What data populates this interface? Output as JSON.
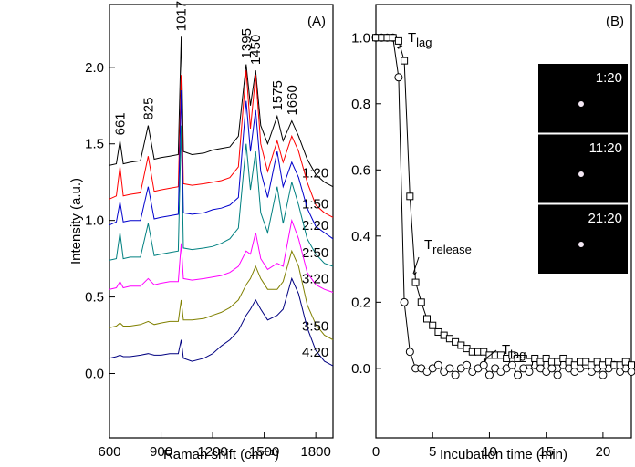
{
  "chart_data": [
    {
      "type": "line",
      "panel_label": "(A)",
      "xlabel": "Raman shift (cm⁻¹)",
      "ylabel": "Intensity (a.u.)",
      "xlim": [
        600,
        1900
      ],
      "xticks": [
        600,
        900,
        1200,
        1500,
        1800
      ],
      "ylim": [
        -0.42,
        2.41
      ],
      "yticks": [
        {
          "value": 0,
          "label": "0.0"
        },
        {
          "value": 0.5,
          "label": "0.5"
        },
        {
          "value": 1,
          "label": "1.0"
        },
        {
          "value": 1.5,
          "label": "1.5"
        },
        {
          "value": 2,
          "label": "2.0"
        }
      ],
      "peak_labels": [
        661,
        825,
        1017,
        1395,
        1450,
        1575,
        1660
      ],
      "x": [
        600,
        640,
        661,
        680,
        720,
        780,
        825,
        860,
        900,
        950,
        1000,
        1017,
        1030,
        1080,
        1150,
        1200,
        1250,
        1300,
        1350,
        1395,
        1420,
        1450,
        1480,
        1520,
        1575,
        1610,
        1660,
        1700,
        1750,
        1800,
        1850,
        1900
      ],
      "series": [
        {
          "name": "1:20",
          "color": "#000000",
          "values": [
            1.36,
            1.37,
            1.52,
            1.37,
            1.38,
            1.39,
            1.62,
            1.4,
            1.41,
            1.42,
            1.43,
            2.2,
            1.45,
            1.43,
            1.44,
            1.46,
            1.47,
            1.48,
            1.55,
            2.02,
            1.75,
            1.98,
            1.62,
            1.5,
            1.68,
            1.52,
            1.65,
            1.55,
            1.4,
            1.3,
            1.25,
            1.22
          ]
        },
        {
          "name": "1:50",
          "color": "#ff0000",
          "values": [
            1.14,
            1.16,
            1.35,
            1.16,
            1.17,
            1.18,
            1.42,
            1.19,
            1.2,
            1.21,
            1.22,
            1.95,
            1.24,
            1.23,
            1.24,
            1.25,
            1.26,
            1.28,
            1.35,
            1.98,
            1.6,
            1.95,
            1.5,
            1.32,
            1.52,
            1.38,
            1.55,
            1.45,
            1.25,
            1.1,
            1.05,
            1.02
          ]
        },
        {
          "name": "2:20",
          "color": "#0000cc",
          "values": [
            0.97,
            0.99,
            1.12,
            0.99,
            1.0,
            1.0,
            1.22,
            1.01,
            1.02,
            1.03,
            1.04,
            1.85,
            1.05,
            1.04,
            1.05,
            1.07,
            1.08,
            1.1,
            1.15,
            1.78,
            1.45,
            1.72,
            1.32,
            1.15,
            1.45,
            1.22,
            1.38,
            1.28,
            1.08,
            0.96,
            0.92,
            0.88
          ]
        },
        {
          "name": "2:50",
          "color": "#008080",
          "values": [
            0.74,
            0.75,
            0.92,
            0.75,
            0.76,
            0.76,
            0.98,
            0.77,
            0.78,
            0.79,
            0.8,
            1.62,
            0.82,
            0.81,
            0.82,
            0.83,
            0.85,
            0.88,
            0.95,
            1.5,
            1.2,
            1.45,
            1.05,
            0.92,
            1.22,
            0.98,
            1.25,
            1.1,
            0.88,
            0.78,
            0.72,
            0.7
          ]
        },
        {
          "name": "3:20",
          "color": "#ff00ff",
          "values": [
            0.55,
            0.56,
            0.6,
            0.56,
            0.57,
            0.57,
            0.62,
            0.58,
            0.59,
            0.6,
            0.6,
            0.85,
            0.62,
            0.61,
            0.62,
            0.63,
            0.64,
            0.66,
            0.7,
            0.8,
            0.78,
            0.92,
            0.75,
            0.68,
            0.72,
            0.7,
            1.0,
            0.88,
            0.66,
            0.58,
            0.55,
            0.53
          ]
        },
        {
          "name": "3:50",
          "color": "#808000",
          "values": [
            0.3,
            0.31,
            0.33,
            0.31,
            0.31,
            0.32,
            0.34,
            0.32,
            0.33,
            0.34,
            0.34,
            0.48,
            0.35,
            0.35,
            0.36,
            0.38,
            0.4,
            0.43,
            0.48,
            0.58,
            0.62,
            0.7,
            0.62,
            0.55,
            0.55,
            0.6,
            0.8,
            0.7,
            0.45,
            0.32,
            0.25,
            0.22
          ]
        },
        {
          "name": "4:20",
          "color": "#000080",
          "values": [
            0.1,
            0.11,
            0.12,
            0.11,
            0.11,
            0.12,
            0.13,
            0.12,
            0.12,
            0.13,
            0.13,
            0.22,
            0.1,
            0.08,
            0.1,
            0.13,
            0.18,
            0.22,
            0.28,
            0.38,
            0.42,
            0.48,
            0.42,
            0.35,
            0.38,
            0.42,
            0.62,
            0.52,
            0.3,
            0.15,
            0.08,
            0.05
          ]
        }
      ]
    },
    {
      "type": "scatter",
      "panel_label": "(B)",
      "xlabel": "Incubation time (min)",
      "xlim": [
        0,
        22.5
      ],
      "xticks": [
        0,
        5,
        10,
        15,
        20
      ],
      "ylim": [
        -0.21,
        1.1
      ],
      "yticks": [
        {
          "value": 0,
          "label": "0.0"
        },
        {
          "value": 0.2,
          "label": "0.2"
        },
        {
          "value": 0.4,
          "label": "0.4"
        },
        {
          "value": 0.6,
          "label": "0.6"
        },
        {
          "value": 0.8,
          "label": "0.8"
        },
        {
          "value": 1,
          "label": "1.0"
        }
      ],
      "annotations": [
        {
          "text": "T",
          "sub": "lag"
        },
        {
          "text": "T",
          "sub": "release"
        },
        {
          "text": "T",
          "sub": "lag"
        }
      ],
      "inset_labels": [
        "1:20",
        "11:20",
        "21:20"
      ],
      "x": [
        0,
        0.5,
        1,
        1.5,
        2,
        2.5,
        3,
        3.5,
        4,
        4.5,
        5,
        5.5,
        6,
        6.5,
        7,
        7.5,
        8,
        8.5,
        9,
        9.5,
        10,
        10.5,
        11,
        11.5,
        12,
        12.5,
        13,
        13.5,
        14,
        14.5,
        15,
        15.5,
        16,
        16.5,
        17,
        17.5,
        18,
        18.5,
        19,
        19.5,
        20,
        20.5,
        21,
        21.5,
        22,
        22.5
      ],
      "series": [
        {
          "marker": "circle",
          "color": "#000000",
          "values": [
            1.0,
            1.0,
            1.0,
            1.0,
            0.88,
            0.2,
            0.05,
            0.0,
            0.0,
            -0.01,
            0.0,
            0.01,
            -0.01,
            0.0,
            -0.02,
            0.0,
            0.01,
            -0.01,
            0.0,
            0.01,
            -0.02,
            0.0,
            -0.01,
            0.0,
            0.01,
            -0.02,
            0.0,
            -0.01,
            0.01,
            0.0,
            -0.01,
            0.0,
            -0.02,
            0.01,
            0.0,
            -0.01,
            0.0,
            0.01,
            -0.01,
            0.0,
            -0.02,
            0.0,
            0.01,
            -0.01,
            0.0,
            -0.01
          ]
        },
        {
          "marker": "square",
          "color": "#000000",
          "values": [
            1.0,
            1.0,
            1.0,
            1.0,
            0.99,
            0.93,
            0.52,
            0.26,
            0.2,
            0.15,
            0.13,
            0.11,
            0.1,
            0.09,
            0.08,
            0.07,
            0.06,
            0.05,
            0.05,
            0.05,
            0.04,
            0.04,
            0.04,
            0.03,
            0.04,
            0.03,
            0.03,
            0.02,
            0.03,
            0.02,
            0.03,
            0.02,
            0.02,
            0.03,
            0.02,
            0.01,
            0.02,
            0.02,
            0.01,
            0.02,
            0.01,
            0.02,
            0.01,
            0.01,
            0.02,
            0.01
          ]
        }
      ]
    }
  ]
}
